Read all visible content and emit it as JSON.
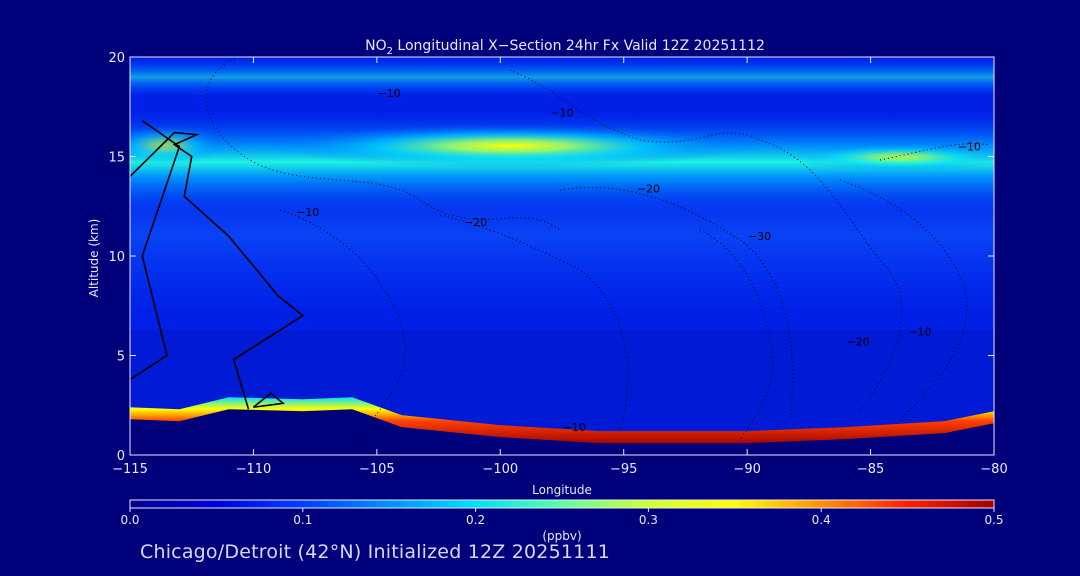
{
  "chart_data": {
    "type": "heatmap",
    "title_main": "NO",
    "title_sub": "2",
    "title_rest": " Longitudinal X−Section 24hr  Fx Valid 12Z 20251112",
    "xlabel": "Longitude",
    "ylabel": "Altitude (km)",
    "xlim": [
      -115,
      -80
    ],
    "ylim": [
      0,
      20
    ],
    "x_ticks": [
      -115,
      -110,
      -105,
      -100,
      -95,
      -90,
      -85,
      -80
    ],
    "x_tick_labels": [
      "−115",
      "−110",
      "−105",
      "−100",
      "−95",
      "−90",
      "−85",
      "−80"
    ],
    "y_ticks": [
      0,
      5,
      10,
      15,
      20
    ],
    "y_tick_labels": [
      "0",
      "5",
      "10",
      "15",
      "20"
    ],
    "colorbar": {
      "label": "(ppbv)",
      "range": [
        0.0,
        0.5
      ],
      "ticks": [
        0.0,
        0.1,
        0.2,
        0.3,
        0.4,
        0.5
      ],
      "tick_labels": [
        "0.0",
        "0.1",
        "0.2",
        "0.3",
        "0.4",
        "0.5"
      ],
      "colors": [
        "#00008c",
        "#0000d8",
        "#0040ff",
        "#0090ff",
        "#00e0ff",
        "#60ffa0",
        "#d0ff30",
        "#ffff00",
        "#ff9000",
        "#ff2000",
        "#a00000"
      ]
    },
    "terrain_km": [
      [
        -115,
        1.8
      ],
      [
        -113,
        1.7
      ],
      [
        -111,
        2.3
      ],
      [
        -108,
        2.2
      ],
      [
        -106,
        2.3
      ],
      [
        -104,
        1.4
      ],
      [
        -100,
        0.9
      ],
      [
        -96,
        0.6
      ],
      [
        -90,
        0.6
      ],
      [
        -86,
        0.8
      ],
      [
        -82,
        1.1
      ],
      [
        -80,
        1.6
      ]
    ],
    "no2_layers": [
      {
        "name": "upper",
        "center_km": 15.5,
        "peak_lon": -102,
        "peak_ppbv": 0.32
      },
      {
        "name": "surface",
        "center_km": 1.0,
        "peak_lon": -82,
        "peak_ppbv": 0.5
      }
    ],
    "contour_labels": [
      {
        "text": "−10",
        "lon": -104.5,
        "alt": 18.0
      },
      {
        "text": "−10",
        "lon": -97.5,
        "alt": 17.0
      },
      {
        "text": "−10",
        "lon": -107.8,
        "alt": 12.0
      },
      {
        "text": "−20",
        "lon": -101.0,
        "alt": 11.5
      },
      {
        "text": "−20",
        "lon": -94.0,
        "alt": 13.2
      },
      {
        "text": "−30",
        "lon": -89.5,
        "alt": 10.8
      },
      {
        "text": "−20",
        "lon": -85.5,
        "alt": 5.5
      },
      {
        "text": "−10",
        "lon": -83.0,
        "alt": 6.0
      },
      {
        "text": "−10",
        "lon": -81.0,
        "alt": 15.3
      },
      {
        "text": "−10",
        "lon": -97.0,
        "alt": 1.2
      }
    ],
    "solid_contours": [
      [
        [
          -115,
          3.8
        ],
        [
          -113.5,
          5.0
        ],
        [
          -114.5,
          10.0
        ],
        [
          -113.0,
          15.5
        ],
        [
          -114.5,
          16.8
        ]
      ],
      [
        [
          -115,
          14.0
        ],
        [
          -113.2,
          16.2
        ],
        [
          -112.3,
          16.1
        ],
        [
          -113.2,
          15.6
        ],
        [
          -112.5,
          15.0
        ],
        [
          -112.8,
          13.0
        ],
        [
          -111.0,
          11.0
        ],
        [
          -109.0,
          8.0
        ],
        [
          -108.0,
          7.0
        ],
        [
          -110.8,
          4.8
        ],
        [
          -110.2,
          2.3
        ]
      ],
      [
        [
          -110.0,
          2.4
        ],
        [
          -109.3,
          3.1
        ],
        [
          -108.8,
          2.6
        ],
        [
          -110.0,
          2.4
        ]
      ]
    ]
  },
  "footer": "Chicago/Detroit (42°N) Initialized 12Z 20251111"
}
